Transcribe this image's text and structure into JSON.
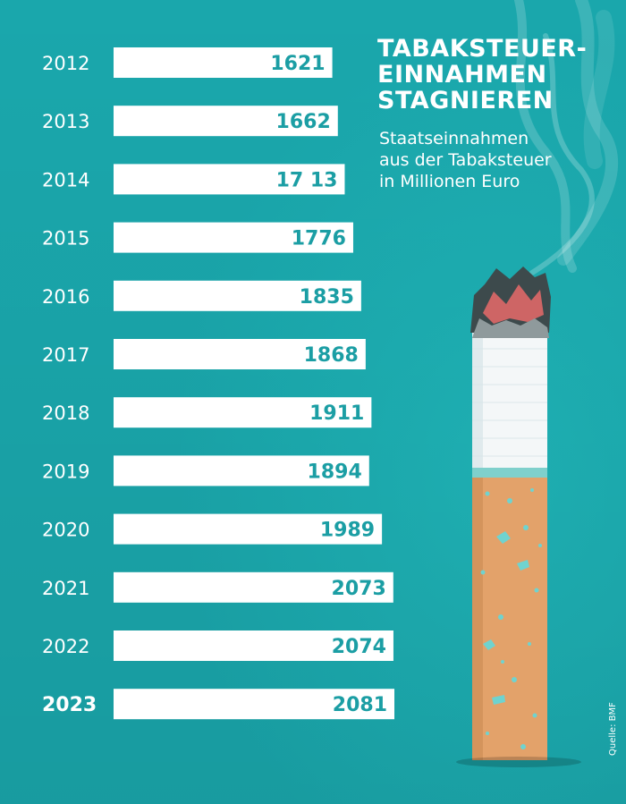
{
  "title_lines": [
    "TABAKSTEUER-",
    "EINNAHMEN",
    "STAGNIEREN"
  ],
  "subtitle_lines": [
    "Staatseinnahmen",
    "aus der Tabaksteuer",
    "in Millionen Euro"
  ],
  "source": "Quelle: BMF",
  "colors": {
    "background": "#1aa7ac",
    "bar": "#ffffff",
    "value_text": "#1b9ea4",
    "filter": "#e3a26a",
    "paper": "#f4f7f8"
  },
  "chart_data": {
    "type": "bar",
    "orientation": "horizontal",
    "title": "TABAKSTEUER-EINNAHMEN STAGNIEREN",
    "subtitle": "Staatseinnahmen aus der Tabaksteuer in Millionen Euro",
    "categories": [
      "2012",
      "2013",
      "2014",
      "2015",
      "2016",
      "2017",
      "2018",
      "2019",
      "2020",
      "2021",
      "2022",
      "2023"
    ],
    "values": [
      1621,
      1662,
      1713,
      1776,
      1835,
      1868,
      1911,
      1894,
      1989,
      2073,
      2074,
      2081
    ],
    "value_labels": [
      "1621",
      "1662",
      "17 13",
      "1776",
      "1835",
      "1868",
      "1911",
      "1894",
      "1989",
      "2073",
      "2074",
      "2081"
    ],
    "highlight_category": "2023",
    "xlim": [
      0,
      2081
    ],
    "grid": false,
    "legend": "none"
  }
}
